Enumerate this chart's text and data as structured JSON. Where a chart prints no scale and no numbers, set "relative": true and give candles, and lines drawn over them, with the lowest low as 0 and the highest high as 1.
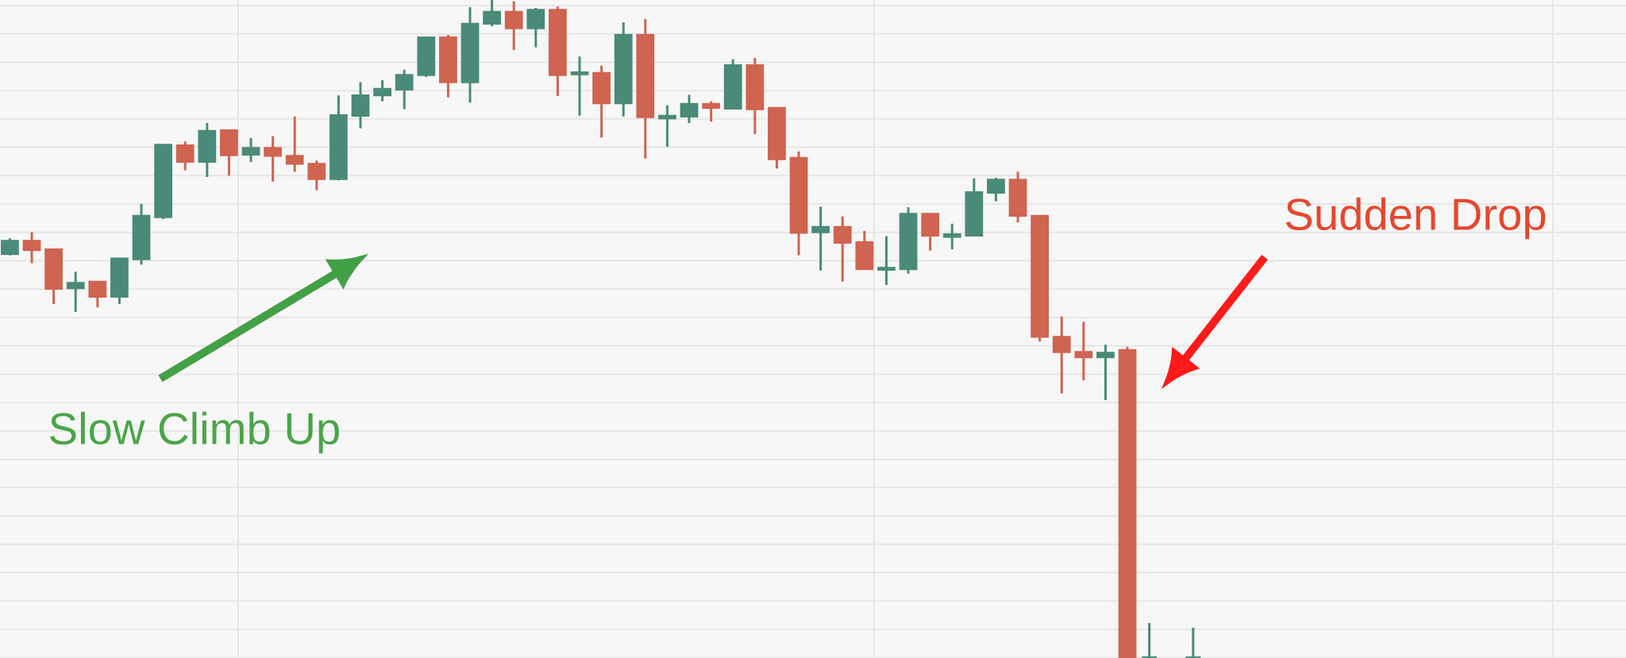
{
  "chart_data": {
    "type": "candlestick",
    "relative": true,
    "grid": true,
    "annotations": [
      "Slow Climb Up",
      "Sudden Drop"
    ],
    "categories": [
      null,
      null,
      null,
      null,
      null,
      null,
      null,
      null,
      null,
      null,
      null,
      null,
      null,
      null,
      null,
      null,
      null,
      null,
      null,
      null,
      null,
      null,
      null,
      null,
      null,
      null,
      null,
      null,
      null,
      null,
      null,
      null,
      null,
      null,
      null,
      null,
      null,
      null,
      null,
      null,
      null,
      null,
      null,
      null,
      null,
      null,
      null,
      null,
      null,
      null,
      null,
      null,
      null,
      null,
      null
    ],
    "ohlc": [
      [
        0.615,
        0.638,
        0.612,
        0.633
      ],
      [
        0.633,
        0.647,
        0.6,
        0.621
      ],
      [
        0.62,
        0.62,
        0.538,
        0.562
      ],
      [
        0.563,
        0.587,
        0.526,
        0.569
      ],
      [
        0.571,
        0.571,
        0.533,
        0.55
      ],
      [
        0.55,
        0.606,
        0.538,
        0.606
      ],
      [
        0.607,
        0.69,
        0.598,
        0.671
      ],
      [
        0.671,
        0.779,
        0.667,
        0.779
      ],
      [
        0.778,
        0.785,
        0.741,
        0.755
      ],
      [
        0.755,
        0.813,
        0.731,
        0.8
      ],
      [
        0.801,
        0.803,
        0.733,
        0.765
      ],
      [
        0.766,
        0.79,
        0.754,
        0.774
      ],
      [
        0.774,
        0.793,
        0.724,
        0.764
      ],
      [
        0.762,
        0.823,
        0.739,
        0.752
      ],
      [
        0.75,
        0.756,
        0.711,
        0.729
      ],
      [
        0.729,
        0.855,
        0.726,
        0.824
      ],
      [
        0.825,
        0.875,
        0.805,
        0.854
      ],
      [
        0.856,
        0.878,
        0.846,
        0.864
      ],
      [
        0.865,
        0.894,
        0.834,
        0.885
      ],
      [
        0.887,
        0.942,
        0.883,
        0.942
      ],
      [
        0.942,
        0.947,
        0.852,
        0.876
      ],
      [
        0.876,
        0.989,
        0.844,
        0.963
      ],
      [
        0.965,
        1,
        0.96,
        0.981
      ],
      [
        0.981,
        0.998,
        0.924,
        0.958
      ],
      [
        0.958,
        0.988,
        0.928,
        0.984
      ],
      [
        0.984,
        0.99,
        0.854,
        0.887
      ],
      [
        0.888,
        0.914,
        0.824,
        0.889
      ],
      [
        0.888,
        0.9,
        0.791,
        0.844
      ],
      [
        0.844,
        0.966,
        0.823,
        0.946
      ],
      [
        0.946,
        0.971,
        0.759,
        0.823
      ],
      [
        0.821,
        0.84,
        0.777,
        0.823
      ],
      [
        0.824,
        0.856,
        0.813,
        0.841
      ],
      [
        0.841,
        0.846,
        0.815,
        0.837
      ],
      [
        0.836,
        0.91,
        0.836,
        0.9
      ],
      [
        0.9,
        0.912,
        0.796,
        0.835
      ],
      [
        0.835,
        0.837,
        0.744,
        0.759
      ],
      [
        0.759,
        0.77,
        0.612,
        0.647
      ],
      [
        0.648,
        0.686,
        0.589,
        0.654
      ],
      [
        0.654,
        0.671,
        0.572,
        0.632
      ],
      [
        0.631,
        0.649,
        0.592,
        0.592
      ],
      [
        0.591,
        0.641,
        0.567,
        0.592
      ],
      [
        0.592,
        0.685,
        0.584,
        0.674
      ],
      [
        0.674,
        0.674,
        0.619,
        0.643
      ],
      [
        0.641,
        0.66,
        0.621,
        0.643
      ],
      [
        0.643,
        0.729,
        0.643,
        0.707
      ],
      [
        0.708,
        0.73,
        0.694,
        0.726
      ],
      [
        0.726,
        0.739,
        0.662,
        0.673
      ],
      [
        0.671,
        0.671,
        0.481,
        0.489
      ],
      [
        0.487,
        0.519,
        0.402,
        0.466
      ],
      [
        0.464,
        0.511,
        0.422,
        0.458
      ],
      [
        0.458,
        0.476,
        0.392,
        0.463
      ],
      [
        0.467,
        0.473,
        0,
        0
      ],
      [
        0,
        0.053,
        0,
        0
      ],
      null,
      [
        0,
        0.046,
        0,
        0
      ]
    ],
    "colors": [
      "#4a8a78",
      "#cf6450",
      "#cf6450",
      "#4a8a78",
      "#cf6450",
      "#4a8a78",
      "#4a8a78",
      "#4a8a78",
      "#cf6450",
      "#4a8a78",
      "#cf6450",
      "#4a8a78",
      "#cf6450",
      "#cf6450",
      "#cf6450",
      "#4a8a78",
      "#4a8a78",
      "#4a8a78",
      "#4a8a78",
      "#4a8a78",
      "#cf6450",
      "#4a8a78",
      "#4a8a78",
      "#cf6450",
      "#4a8a78",
      "#cf6450",
      "#4a8a78",
      "#cf6450",
      "#4a8a78",
      "#cf6450",
      "#4a8a78",
      "#4a8a78",
      "#cf6450",
      "#4a8a78",
      "#cf6450",
      "#cf6450",
      "#cf6450",
      "#4a8a78",
      "#cf6450",
      "#cf6450",
      "#4a8a78",
      "#4a8a78",
      "#cf6450",
      "#4a8a78",
      "#4a8a78",
      "#4a8a78",
      "#cf6450",
      "#cf6450",
      "#cf6450",
      "#cf6450",
      "#4a8a78",
      "#cf6450",
      "#4a8a78",
      null,
      "#4a8a78"
    ]
  }
}
